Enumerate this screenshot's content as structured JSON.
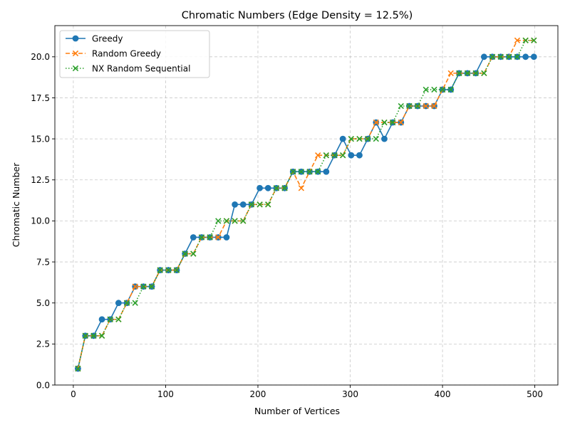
{
  "chart_data": {
    "type": "line",
    "title": "Chromatic Numbers (Edge Density = 12.5%)",
    "xlabel": "Number of Vertices",
    "ylabel": "Chromatic Number",
    "xlim": [
      -20,
      525
    ],
    "ylim": [
      0,
      21.9
    ],
    "xticks": [
      0,
      100,
      200,
      300,
      400,
      500
    ],
    "xtick_labels": [
      "0",
      "100",
      "200",
      "300",
      "400",
      "500"
    ],
    "yticks": [
      0,
      2.5,
      5,
      7.5,
      10,
      12.5,
      15,
      17.5,
      20
    ],
    "ytick_labels": [
      "0.0",
      "2.5",
      "5.0",
      "7.5",
      "10.0",
      "12.5",
      "15.0",
      "17.5",
      "20.0"
    ],
    "grid": true,
    "legend_position": "upper-left",
    "x": [
      5,
      13,
      22,
      31,
      40,
      49,
      58,
      67,
      76,
      85,
      94,
      103,
      112,
      121,
      130,
      139,
      148,
      157,
      166,
      175,
      184,
      193,
      202,
      211,
      220,
      229,
      238,
      247,
      256,
      265,
      274,
      283,
      292,
      301,
      310,
      319,
      328,
      337,
      346,
      355,
      364,
      373,
      382,
      391,
      400,
      409,
      418,
      427,
      436,
      445,
      454,
      463,
      472,
      481,
      490,
      499
    ],
    "series": [
      {
        "name": "Greedy",
        "color": "#1f77b4",
        "linestyle": "solid",
        "marker": "circle",
        "values": [
          1,
          3,
          3,
          4,
          4,
          5,
          5,
          6,
          6,
          6,
          7,
          7,
          7,
          8,
          9,
          9,
          9,
          9,
          9,
          11,
          11,
          11,
          12,
          12,
          12,
          12,
          13,
          13,
          13,
          13,
          13,
          14,
          15,
          14,
          14,
          15,
          16,
          15,
          16,
          16,
          17,
          17,
          17,
          17,
          18,
          18,
          19,
          19,
          19,
          20,
          20,
          20,
          20,
          20,
          20,
          20
        ]
      },
      {
        "name": "Random Greedy",
        "color": "#ff7f0e",
        "linestyle": "dashed",
        "marker": "x",
        "values": [
          1,
          3,
          3,
          3,
          4,
          4,
          5,
          6,
          6,
          6,
          7,
          7,
          7,
          8,
          8,
          9,
          9,
          9,
          10,
          10,
          10,
          11,
          11,
          11,
          12,
          12,
          13,
          12,
          13,
          14,
          14,
          14,
          14,
          15,
          15,
          15,
          16,
          16,
          16,
          16,
          17,
          17,
          17,
          17,
          18,
          19,
          19,
          19,
          19,
          19,
          20,
          20,
          20,
          21,
          21,
          21
        ]
      },
      {
        "name": "NX Random Sequential",
        "color": "#2ca02c",
        "linestyle": "dotted",
        "marker": "x",
        "values": [
          1,
          3,
          3,
          3,
          4,
          4,
          5,
          5,
          6,
          6,
          7,
          7,
          7,
          8,
          8,
          9,
          9,
          10,
          10,
          10,
          10,
          11,
          11,
          11,
          12,
          12,
          13,
          13,
          13,
          13,
          14,
          14,
          14,
          15,
          15,
          15,
          15,
          16,
          16,
          17,
          17,
          17,
          18,
          18,
          18,
          18,
          19,
          19,
          19,
          19,
          20,
          20,
          20,
          20,
          21,
          21
        ]
      }
    ]
  }
}
